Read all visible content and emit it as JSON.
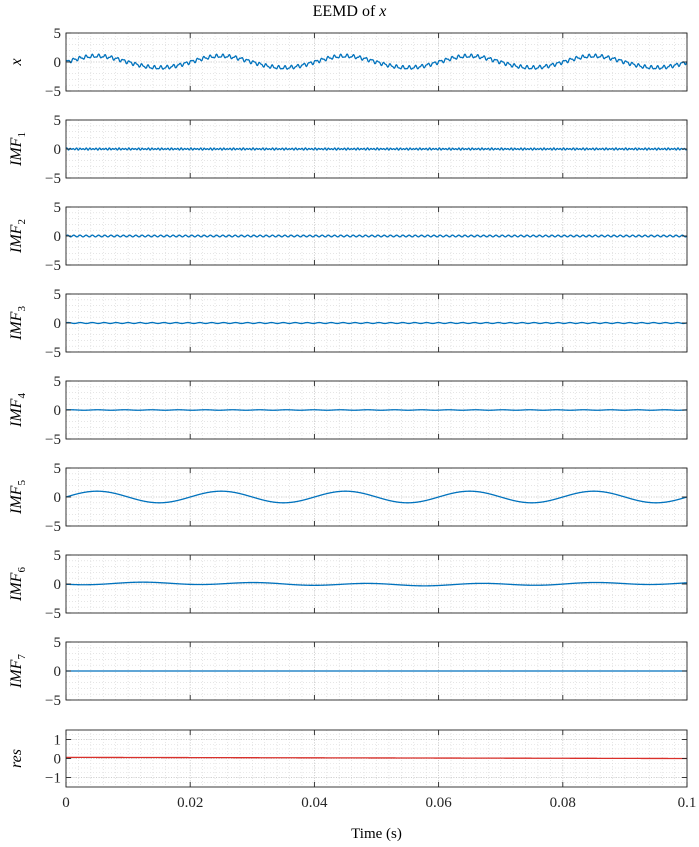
{
  "chart_data": {
    "type": "line",
    "title": "EEMD of",
    "title_variable": "x",
    "xlabel": "Time (s)",
    "xlim": [
      0,
      0.1
    ],
    "xticks": [
      0,
      0.02,
      0.04,
      0.06,
      0.08,
      0.1
    ],
    "xtick_labels": [
      "0",
      "0.02",
      "0.04",
      "0.06",
      "0.08",
      "0.1"
    ],
    "grid": true,
    "line_color": "#0072BD",
    "residual_color": "#D9302B",
    "panels": [
      {
        "id": "x",
        "ylabel": "x",
        "ylabel_sub": "",
        "ylim": [
          -5,
          5
        ],
        "yticks": [
          5,
          0,
          -5
        ],
        "ytick_labels": [
          "5",
          "0",
          "−5"
        ],
        "components": [
          {
            "amp": 1.0,
            "freq": 50,
            "phase": 0.0
          },
          {
            "amp": 0.25,
            "freq": 1000,
            "phase": 0.0
          },
          {
            "amp": 0.12,
            "freq": 1900,
            "phase": 1.3
          }
        ]
      },
      {
        "id": "imf1",
        "ylabel": "IMF",
        "ylabel_sub": "1",
        "ylim": [
          -5,
          5
        ],
        "yticks": [
          5,
          0,
          -5
        ],
        "ytick_labels": [
          "5",
          "0",
          "−5"
        ],
        "components": [
          {
            "amp": 0.12,
            "freq": 1900,
            "phase": 0.0
          },
          {
            "amp": 0.06,
            "freq": 1300,
            "phase": 0.7
          }
        ]
      },
      {
        "id": "imf2",
        "ylabel": "IMF",
        "ylabel_sub": "2",
        "ylim": [
          -5,
          5
        ],
        "yticks": [
          5,
          0,
          -5
        ],
        "ytick_labels": [
          "5",
          "0",
          "−5"
        ],
        "components": [
          {
            "amp": 0.15,
            "freq": 1000,
            "phase": 0.0
          }
        ]
      },
      {
        "id": "imf3",
        "ylabel": "IMF",
        "ylabel_sub": "3",
        "ylim": [
          -5,
          5
        ],
        "yticks": [
          5,
          0,
          -5
        ],
        "ytick_labels": [
          "5",
          "0",
          "−5"
        ],
        "components": [
          {
            "amp": 0.08,
            "freq": 520,
            "phase": 0.3
          }
        ]
      },
      {
        "id": "imf4",
        "ylabel": "IMF",
        "ylabel_sub": "4",
        "ylim": [
          -5,
          5
        ],
        "yticks": [
          5,
          0,
          -5
        ],
        "ytick_labels": [
          "5",
          "0",
          "−5"
        ],
        "components": [
          {
            "amp": 0.04,
            "freq": 230,
            "phase": 0.5
          }
        ]
      },
      {
        "id": "imf5",
        "ylabel": "IMF",
        "ylabel_sub": "5",
        "ylim": [
          -5,
          5
        ],
        "yticks": [
          5,
          0,
          -5
        ],
        "ytick_labels": [
          "5",
          "0",
          "−5"
        ],
        "components": [
          {
            "amp": 1.0,
            "freq": 50,
            "phase": 0.0
          }
        ]
      },
      {
        "id": "imf6",
        "ylabel": "IMF",
        "ylabel_sub": "6",
        "ylim": [
          -5,
          5
        ],
        "yticks": [
          5,
          0,
          -5
        ],
        "ytick_labels": [
          "5",
          "0",
          "−5"
        ],
        "components": [
          {
            "amp": 0.2,
            "freq": 55,
            "phase": 3.6
          },
          {
            "amp": 0.12,
            "freq": 12,
            "phase": 0.4
          }
        ]
      },
      {
        "id": "imf7",
        "ylabel": "IMF",
        "ylabel_sub": "7",
        "ylim": [
          -5,
          5
        ],
        "yticks": [
          5,
          0,
          -5
        ],
        "ytick_labels": [
          "5",
          "0",
          "−5"
        ],
        "components": []
      },
      {
        "id": "res",
        "ylabel": "res",
        "ylabel_sub": "",
        "ylim": [
          -1.5,
          1.5
        ],
        "yticks": [
          1,
          0,
          -1
        ],
        "ytick_labels": [
          "1",
          "0",
          "−1"
        ],
        "components": [],
        "linear": {
          "start": 0.06,
          "end": 0.0
        },
        "is_residual": true
      }
    ]
  }
}
